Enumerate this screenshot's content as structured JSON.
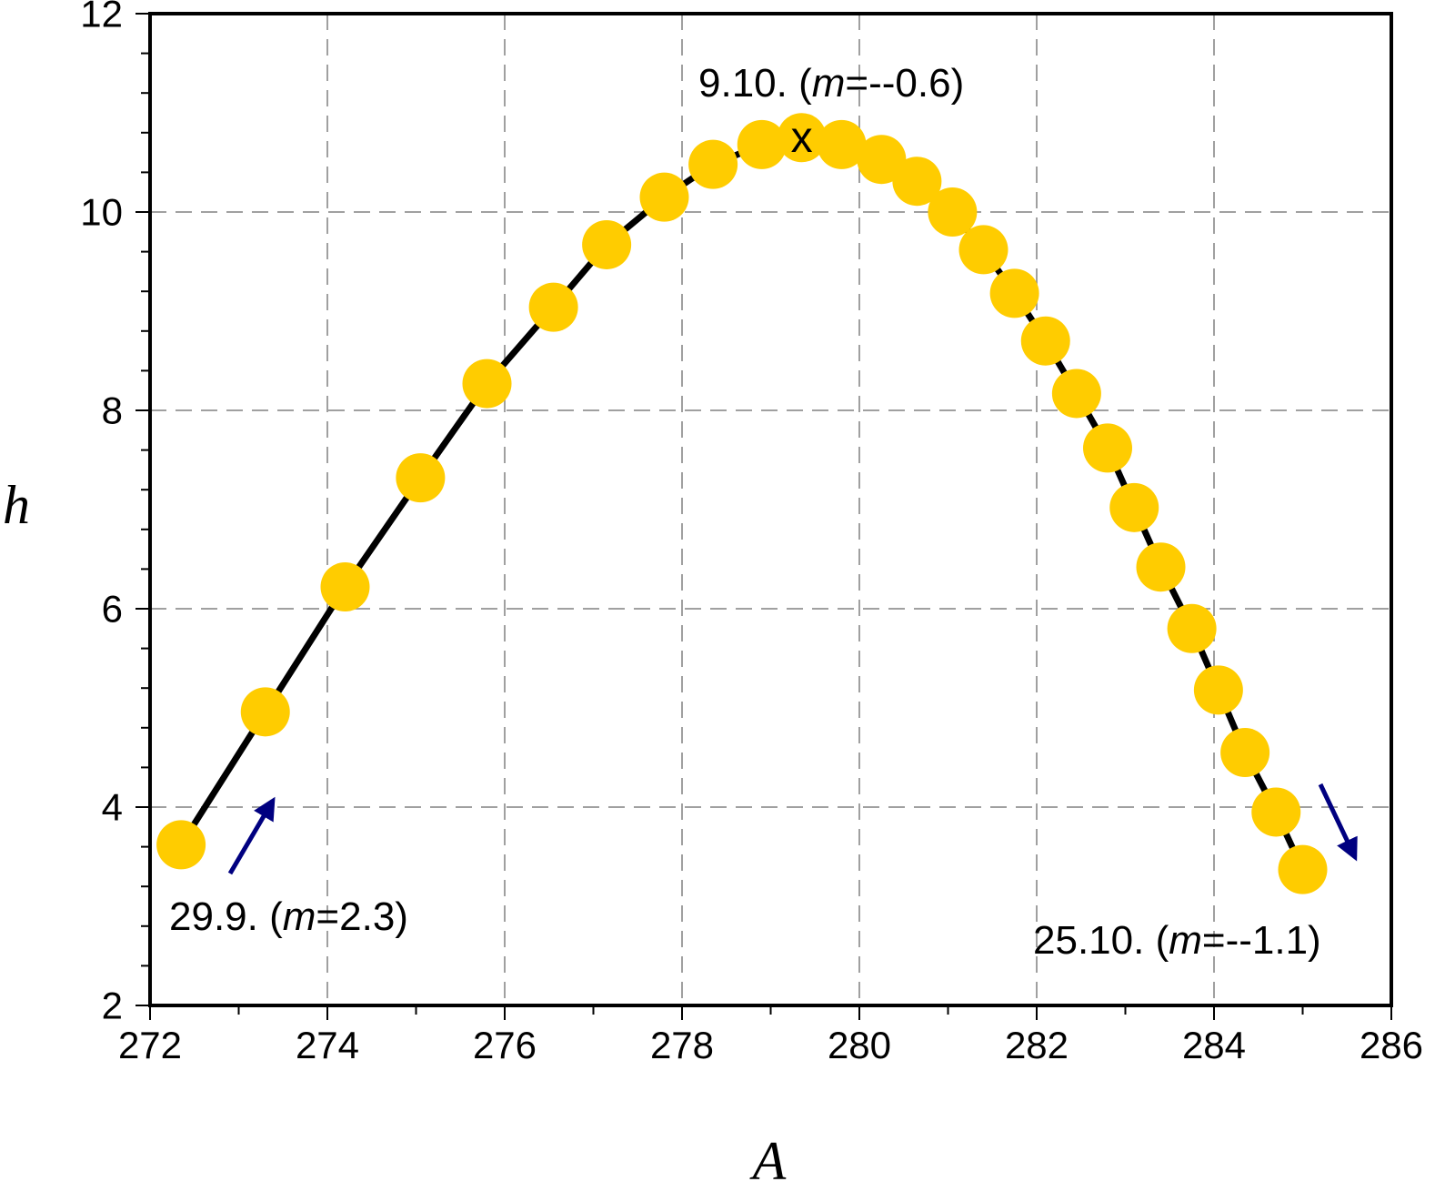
{
  "chart_data": {
    "type": "scatter",
    "xlabel": "A",
    "ylabel": "h",
    "xlim": [
      272,
      286
    ],
    "ylim": [
      2,
      12
    ],
    "x_ticks": [
      272,
      274,
      276,
      278,
      280,
      282,
      284,
      286
    ],
    "y_ticks": [
      2,
      4,
      6,
      8,
      10,
      12
    ],
    "grid": true,
    "colors": {
      "marker": "#FFCC00",
      "line": "#000000",
      "arrow": "#000080",
      "grid": "#808080"
    },
    "series": [
      {
        "x": [
          272.35,
          273.3,
          274.2,
          275.05,
          275.8,
          276.55,
          277.15,
          277.8,
          278.35,
          278.9,
          279.35,
          279.8,
          280.25,
          280.65,
          281.05,
          281.4,
          281.75,
          282.1,
          282.45,
          282.8,
          283.1,
          283.4,
          283.75,
          284.05,
          284.35,
          284.7,
          285.0
        ],
        "y": [
          3.62,
          4.96,
          6.22,
          7.32,
          8.27,
          9.04,
          9.67,
          10.15,
          10.48,
          10.68,
          10.75,
          10.68,
          10.53,
          10.31,
          10.0,
          9.62,
          9.18,
          8.7,
          8.17,
          7.62,
          7.02,
          6.42,
          5.8,
          5.18,
          4.55,
          3.95,
          3.37
        ]
      }
    ],
    "highlight": {
      "x": 279.35,
      "y": 10.75,
      "symbol": "x"
    },
    "annotations": [
      {
        "date": "9.10.",
        "pre": " (",
        "var": "m",
        "val": "=‑‑0.6)"
      },
      {
        "date": "29.9.",
        "pre": " (",
        "var": "m",
        "val": "=2.3)"
      },
      {
        "date": "25.10.",
        "pre": " (",
        "var": "m",
        "val": "=‑‑1.1)"
      }
    ]
  }
}
